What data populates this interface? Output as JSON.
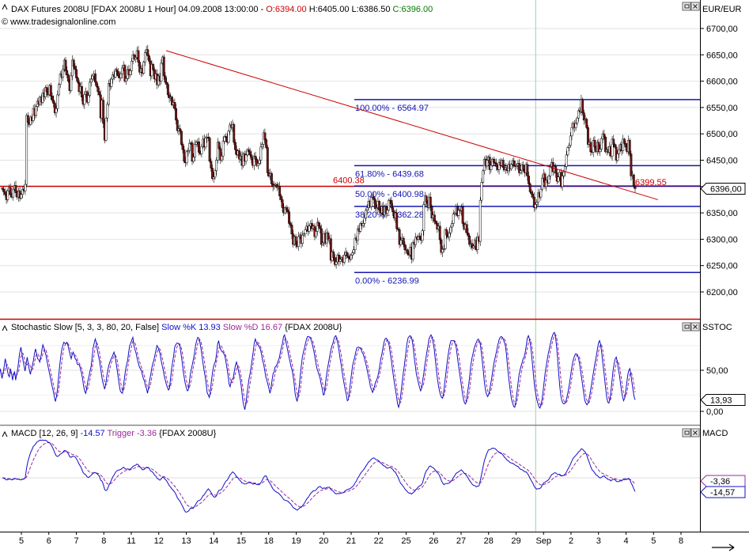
{
  "chart_data": [
    {
      "type": "candlestick",
      "panel": "price",
      "title": "DAX Futures 2008U [FDAX 2008U  1 Hour] 04.09.2008 13:00:00",
      "ohlc_label": {
        "open": "O:6394.00",
        "high": "H:6405.00",
        "low": "L:6386.50",
        "close": "C:6396.00"
      },
      "source": "© www.tradesignalonline.com",
      "currency": "EUR/EUR",
      "yticks": [
        "6700,00",
        "6650,00",
        "6600,00",
        "6550,00",
        "6500,00",
        "6450,00",
        "6400,00",
        "6350,00",
        "6300,00",
        "6250,00",
        "6200,00"
      ],
      "ylim": [
        6170,
        6720
      ],
      "last_price": "6396,00",
      "close": [
        6395,
        6390,
        6385,
        6375,
        6392,
        6398,
        6385,
        6380,
        6395,
        6402,
        6388,
        6380,
        6392,
        6378,
        6385,
        6395,
        6392,
        6404,
        6535,
        6522,
        6518,
        6532,
        6525,
        6548,
        6535,
        6552,
        6562,
        6556,
        6570,
        6560,
        6578,
        6570,
        6588,
        6580,
        6574,
        6592,
        6572,
        6564,
        6558,
        6540,
        6548,
        6574,
        6594,
        6614,
        6608,
        6622,
        6640,
        6620,
        6612,
        6600,
        6582,
        6610,
        6640,
        6628,
        6622,
        6606,
        6598,
        6580,
        6590,
        6570,
        6556,
        6575,
        6580,
        6560,
        6573,
        6598,
        6604,
        6610,
        6614,
        6598,
        6590,
        6580,
        6574,
        6530,
        6564,
        6520,
        6488,
        6530,
        6556,
        6596,
        6590,
        6604,
        6612,
        6608,
        6622,
        6618,
        6610,
        6606,
        6614,
        6625,
        6630,
        6600,
        6605,
        6622,
        6612,
        6620,
        6638,
        6650,
        6642,
        6645,
        6658,
        6636,
        6617,
        6624,
        6615,
        6636,
        6654,
        6660,
        6648,
        6638,
        6610,
        6632,
        6622,
        6604,
        6614,
        6593,
        6610,
        6600,
        6634,
        6646,
        6610,
        6598,
        6594,
        6574,
        6568,
        6570,
        6555,
        6560,
        6548,
        6526,
        6506,
        6510,
        6505,
        6480,
        6470,
        6448,
        6445,
        6466,
        6468,
        6482,
        6483,
        6448,
        6456,
        6480,
        6484,
        6485,
        6465,
        6462,
        6476,
        6490,
        6475,
        6492,
        6494,
        6492,
        6448,
        6435,
        6415,
        6418,
        6430,
        6450,
        6484,
        6472,
        6450,
        6458,
        6486,
        6495,
        6493,
        6484,
        6505,
        6517,
        6512,
        6518,
        6484,
        6470,
        6460,
        6468,
        6452,
        6458,
        6440,
        6462,
        6448,
        6460,
        6470,
        6466,
        6460,
        6452,
        6440,
        6458,
        6452,
        6440,
        6444,
        6450,
        6475,
        6480,
        6502,
        6489,
        6474,
        6426,
        6420,
        6425,
        6405,
        6400,
        6402,
        6404,
        6398,
        6400,
        6382,
        6375,
        6360,
        6350,
        6360,
        6356,
        6352,
        6330,
        6327,
        6310,
        6290,
        6305,
        6290,
        6286,
        6305,
        6308,
        6292,
        6308,
        6310,
        6318,
        6325,
        6315,
        6325,
        6330,
        6320,
        6325,
        6305,
        6315,
        6332,
        6325,
        6320,
        6290,
        6293,
        6311,
        6293,
        6312,
        6299,
        6301,
        6260,
        6276,
        6265,
        6252,
        6257,
        6270,
        6258,
        6262,
        6265,
        6256,
        6270,
        6275,
        6268,
        6265,
        6262,
        6270,
        6274,
        6280,
        6302,
        6298,
        6320,
        6315,
        6330,
        6326,
        6330,
        6340,
        6355,
        6360,
        6372,
        6362,
        6380,
        6380,
        6375,
        6358,
        6360,
        6372,
        6355,
        6350,
        6362,
        6346,
        6362,
        6349,
        6355,
        6374,
        6374,
        6360,
        6352,
        6340,
        6350,
        6320,
        6318,
        6290,
        6298,
        6302,
        6290,
        6280,
        6280,
        6272,
        6270,
        6285,
        6262,
        6294,
        6290,
        6304,
        6300,
        6306,
        6302,
        6298,
        6316,
        6366,
        6382,
        6370,
        6360,
        6380,
        6362,
        6340,
        6346,
        6334,
        6330,
        6319,
        6325,
        6299,
        6275,
        6281,
        6282,
        6318,
        6308,
        6304,
        6312,
        6323,
        6330,
        6348,
        6350,
        6362,
        6345,
        6355,
        6354,
        6361,
        6330,
        6319,
        6328,
        6312,
        6306,
        6290,
        6292,
        6284,
        6287,
        6298,
        6280,
        6304,
        6296,
        6374,
        6408,
        6430,
        6452,
        6439,
        6450,
        6456,
        6432,
        6440,
        6452,
        6446,
        6444,
        6438,
        6432,
        6446,
        6440,
        6450,
        6436,
        6432,
        6436,
        6430,
        6442,
        6433,
        6442,
        6449,
        6440,
        6438,
        6440,
        6444,
        6426,
        6430,
        6441,
        6432,
        6426,
        6442,
        6420,
        6405,
        6390,
        6386,
        6380,
        6360,
        6366,
        6370,
        6388,
        6380,
        6395,
        6416,
        6424,
        6400,
        6412,
        6407,
        6420,
        6438,
        6446,
        6428,
        6438,
        6426,
        6410,
        6418,
        6427,
        6400,
        6420,
        6428,
        6438,
        6460,
        6474,
        6478,
        6496,
        6512,
        6520,
        6512,
        6520,
        6530,
        6544,
        6542,
        6565,
        6540,
        6526,
        6528,
        6512,
        6480,
        6484,
        6466,
        6465,
        6488,
        6475,
        6466,
        6484,
        6466,
        6471,
        6491,
        6500,
        6494,
        6466,
        6470,
        6465,
        6476,
        6458,
        6490,
        6480,
        6475,
        6450,
        6462,
        6470,
        6480,
        6468,
        6490,
        6482,
        6475,
        6466,
        6488,
        6462,
        6420,
        6422,
        6400,
        6396
      ]
    },
    {
      "type": "line",
      "panel": "stochastic",
      "title": "Stochastic Slow [5, 3, 3, 80, 20, False]",
      "series": [
        {
          "name": "Slow %K",
          "value": "13.93",
          "color": "#1010c8"
        },
        {
          "name": "Slow %D",
          "value": "16.67",
          "color": "#9a2a9a"
        }
      ],
      "instrument": "{FDAX 2008U}",
      "label": "SSTOC",
      "yticks": [
        "50,00",
        "0,00"
      ],
      "last_values": [
        "13,93"
      ],
      "ylim": [
        -8,
        108
      ],
      "k_values": [
        52,
        46,
        40,
        47,
        55,
        64,
        58,
        50,
        44,
        42,
        52,
        46,
        38,
        46,
        48,
        38,
        46,
        52,
        63,
        72,
        78,
        70,
        62,
        55,
        49,
        58,
        66,
        58,
        51,
        45,
        51,
        56,
        62,
        71,
        76,
        70,
        64,
        63,
        60,
        66,
        74,
        81,
        77,
        72,
        68,
        61,
        54,
        48,
        42,
        36,
        30,
        24,
        17,
        12,
        18,
        28,
        42,
        55,
        66,
        75,
        80,
        84,
        83,
        82,
        84,
        80,
        74,
        69,
        64,
        69,
        72,
        68,
        64,
        62,
        57,
        57,
        56,
        51,
        46,
        39,
        30,
        24,
        22,
        29,
        37,
        42,
        49,
        54,
        65,
        77,
        83,
        88,
        84,
        75,
        68,
        62,
        54,
        45,
        37,
        32,
        27,
        32,
        42,
        50,
        56,
        60,
        63,
        66,
        69,
        72,
        67,
        59,
        50,
        41,
        32,
        25,
        23,
        22,
        31,
        41,
        50,
        57,
        62,
        72,
        80,
        83,
        87,
        90,
        80,
        75,
        71,
        65,
        60,
        55,
        52,
        50,
        45,
        40,
        37,
        31,
        28,
        22,
        29,
        38,
        44,
        52,
        58,
        62,
        68,
        74,
        80,
        78,
        74,
        70,
        62,
        56,
        50,
        43,
        38,
        33,
        29,
        26,
        28,
        40,
        52,
        60,
        68,
        78,
        81,
        83,
        83,
        82,
        79,
        70,
        61,
        50,
        42,
        34,
        29,
        25,
        26,
        36,
        46,
        52,
        58,
        64,
        72,
        81,
        86,
        90,
        89,
        84,
        77,
        68,
        59,
        50,
        43,
        34,
        23,
        20,
        17,
        23,
        36,
        46,
        54,
        58,
        61,
        70,
        82,
        86,
        79,
        75,
        73,
        72,
        70,
        67,
        60,
        52,
        43,
        33,
        30,
        37,
        39,
        41,
        49,
        56,
        60,
        55,
        49,
        43,
        36,
        26,
        14,
        7,
        2,
        9,
        21,
        30,
        40,
        46,
        54,
        63,
        72,
        83,
        88,
        84,
        82,
        80,
        78,
        75,
        69,
        62,
        57,
        50,
        42,
        38,
        33,
        28,
        22,
        27,
        38,
        46,
        48,
        54,
        55,
        58,
        62,
        65,
        72,
        78,
        83,
        91,
        93,
        86,
        80,
        74,
        67,
        62,
        55,
        51,
        44,
        36,
        22,
        16,
        12,
        20,
        30,
        44,
        56,
        66,
        72,
        77,
        83,
        88,
        91,
        91,
        90,
        88,
        84,
        79,
        73,
        66,
        58,
        52,
        48,
        44,
        40,
        33,
        27,
        20,
        21,
        33,
        43,
        52,
        59,
        66,
        73,
        79,
        82,
        87,
        91,
        92,
        87,
        82,
        74,
        65,
        57,
        48,
        40,
        33,
        26,
        20,
        13,
        14,
        25,
        36,
        46,
        56,
        61,
        66,
        72,
        77,
        78,
        78,
        77,
        76,
        72,
        70,
        66,
        61,
        56,
        50,
        43,
        38,
        30,
        27,
        23,
        26,
        31,
        36,
        38,
        42,
        48,
        56,
        64,
        70,
        77,
        84,
        88,
        89,
        87,
        84,
        80,
        71,
        62,
        52,
        43,
        34,
        26,
        18,
        9,
        5,
        10,
        20,
        31,
        42,
        51,
        62,
        72,
        83,
        89,
        91,
        92,
        90,
        86,
        77,
        64,
        55,
        45,
        40,
        34,
        29,
        25,
        28,
        38,
        46,
        56,
        64,
        72,
        80,
        88,
        91,
        93,
        90,
        83,
        76,
        64,
        52,
        40,
        32,
        25,
        20,
        17,
        16,
        22,
        34,
        45,
        56,
        66,
        74,
        81,
        86,
        86,
        86,
        86,
        82,
        78,
        68,
        58,
        49,
        40,
        31,
        22,
        15,
        10,
        9,
        14,
        24,
        33,
        44,
        56,
        64,
        70,
        76,
        80,
        83,
        86,
        88,
        86,
        82,
        72,
        60,
        48,
        35,
        26,
        21,
        18,
        20,
        26,
        33,
        41,
        50,
        58,
        64,
        70,
        76,
        82,
        87,
        90,
        91,
        90,
        88,
        84,
        80,
        70,
        56,
        43,
        32,
        22,
        14,
        10,
        6,
        5,
        12,
        22,
        33,
        44,
        50,
        55,
        59,
        64,
        66,
        72,
        80,
        89,
        92,
        88,
        81,
        70,
        56,
        42,
        30,
        22,
        15,
        10,
        6,
        4,
        7,
        14,
        24,
        35,
        46,
        55,
        63,
        70,
        76,
        82,
        88,
        92,
        95,
        96,
        90,
        78,
        63,
        46,
        30,
        19,
        13,
        10,
        9,
        10,
        13,
        18,
        24,
        32,
        40,
        49,
        57,
        63,
        67,
        70,
        70,
        68,
        64,
        57,
        48,
        40,
        30,
        21,
        13,
        10,
        8,
        10,
        15,
        22,
        30,
        38,
        46,
        54,
        61,
        68,
        76,
        83,
        86,
        82,
        72,
        60,
        50,
        38,
        26,
        16,
        11,
        10,
        16,
        26,
        38,
        50,
        58,
        64,
        66,
        60,
        52,
        44,
        34,
        25,
        18,
        13,
        16,
        24,
        34,
        44,
        50,
        52,
        44,
        35,
        26,
        18,
        14
      ]
    },
    {
      "type": "line",
      "panel": "macd",
      "title": "MACD [12, 26, 9]",
      "series": [
        {
          "name": "MACD",
          "value": "-14.57",
          "color": "#1010c8"
        },
        {
          "name": "Trigger",
          "value": "-3.36",
          "color": "#9a2a9a"
        }
      ],
      "instrument": "{FDAX 2008U}",
      "label": "MACD",
      "last_values": [
        "-3,36",
        "-14,57"
      ],
      "ylim": [
        -46,
        50
      ]
    }
  ],
  "x_axis": {
    "labels": [
      "5",
      "6",
      "7",
      "8",
      "11",
      "12",
      "13",
      "14",
      "15",
      "18",
      "19",
      "20",
      "21",
      "22",
      "25",
      "26",
      "27",
      "28",
      "29",
      "Sep",
      "2",
      "3",
      "4",
      "5",
      "8"
    ]
  },
  "fibonacci": [
    {
      "label": "100.00% - 6564.97",
      "value": 6564.97
    },
    {
      "label": "61.80% - 6439.68",
      "value": 6439.68
    },
    {
      "label": "50.00% - 6400.98",
      "value": 6400.98
    },
    {
      "label": "38.20% - 6362.28",
      "value": 6362.28
    },
    {
      "label": "0.00% - 6236.99",
      "value": 6236.99
    }
  ],
  "horizontal_line": {
    "label": "6400.38",
    "value": 6400.38,
    "color": "#cc0000"
  },
  "trendline": {
    "end_label": "6399.55",
    "color": "#cc0000"
  },
  "colors": {
    "up": "#ffffff",
    "down": "#7a1414",
    "fib": "#1414b4",
    "red": "#cc0000",
    "k": "#1010c8",
    "d": "#9a2a9a"
  }
}
